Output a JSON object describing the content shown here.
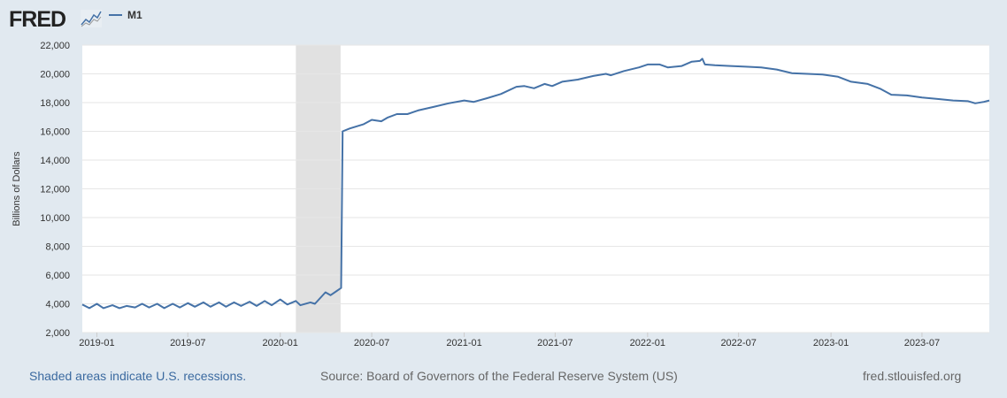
{
  "logo": {
    "text": "FRED"
  },
  "colors": {
    "line": "#4572a7",
    "recession": "#e1e1e1",
    "background": "#e1e9f0",
    "link": "#3b6aa0"
  },
  "footer": {
    "recession_note": "Shaded areas indicate U.S. recessions.",
    "source": "Source: Board of Governors of the Federal Reserve System (US)",
    "site": "fred.stlouisfed.org"
  },
  "chart_data": {
    "type": "line",
    "title": "",
    "ylabel": "Billions of Dollars",
    "xlabel": "",
    "ylim": [
      2000,
      22000
    ],
    "xlim": [
      "2018-12-03",
      "2023-11-12"
    ],
    "grid": true,
    "legend": "top-left",
    "yticks": [
      "2,000",
      "4,000",
      "6,000",
      "8,000",
      "10,000",
      "12,000",
      "14,000",
      "16,000",
      "18,000",
      "20,000",
      "22,000"
    ],
    "ytick_values": [
      2000,
      4000,
      6000,
      8000,
      10000,
      12000,
      14000,
      16000,
      18000,
      20000,
      22000
    ],
    "xticks": [
      "2019-01",
      "2019-07",
      "2020-01",
      "2020-07",
      "2021-01",
      "2021-07",
      "2022-01",
      "2022-07",
      "2023-01",
      "2023-07"
    ],
    "recessions": [
      [
        "2020-02-01",
        "2020-04-30"
      ]
    ],
    "series": [
      {
        "name": "M1",
        "points": [
          [
            "2018-12-03",
            3950
          ],
          [
            "2018-12-17",
            3700
          ],
          [
            "2019-01-01",
            4000
          ],
          [
            "2019-01-14",
            3700
          ],
          [
            "2019-02-01",
            3900
          ],
          [
            "2019-02-15",
            3700
          ],
          [
            "2019-03-01",
            3850
          ],
          [
            "2019-03-18",
            3750
          ],
          [
            "2019-04-01",
            4000
          ],
          [
            "2019-04-15",
            3750
          ],
          [
            "2019-05-01",
            4000
          ],
          [
            "2019-05-15",
            3700
          ],
          [
            "2019-06-01",
            4000
          ],
          [
            "2019-06-15",
            3750
          ],
          [
            "2019-07-01",
            4050
          ],
          [
            "2019-07-15",
            3800
          ],
          [
            "2019-08-01",
            4100
          ],
          [
            "2019-08-15",
            3800
          ],
          [
            "2019-09-01",
            4100
          ],
          [
            "2019-09-15",
            3800
          ],
          [
            "2019-10-01",
            4100
          ],
          [
            "2019-10-15",
            3850
          ],
          [
            "2019-11-01",
            4150
          ],
          [
            "2019-11-15",
            3850
          ],
          [
            "2019-12-01",
            4200
          ],
          [
            "2019-12-15",
            3900
          ],
          [
            "2020-01-01",
            4300
          ],
          [
            "2020-01-15",
            3950
          ],
          [
            "2020-02-01",
            4200
          ],
          [
            "2020-02-10",
            3900
          ],
          [
            "2020-03-01",
            4100
          ],
          [
            "2020-03-10",
            4000
          ],
          [
            "2020-03-31",
            4800
          ],
          [
            "2020-04-10",
            4600
          ],
          [
            "2020-05-01",
            5100
          ],
          [
            "2020-05-04",
            16000
          ],
          [
            "2020-05-18",
            16200
          ],
          [
            "2020-06-15",
            16500
          ],
          [
            "2020-07-01",
            16800
          ],
          [
            "2020-07-20",
            16700
          ],
          [
            "2020-08-01",
            16950
          ],
          [
            "2020-08-20",
            17200
          ],
          [
            "2020-09-10",
            17200
          ],
          [
            "2020-10-01",
            17450
          ],
          [
            "2020-11-01",
            17700
          ],
          [
            "2020-12-01",
            17950
          ],
          [
            "2021-01-01",
            18150
          ],
          [
            "2021-01-20",
            18050
          ],
          [
            "2021-02-15",
            18300
          ],
          [
            "2021-03-15",
            18600
          ],
          [
            "2021-04-15",
            19100
          ],
          [
            "2021-05-01",
            19150
          ],
          [
            "2021-05-20",
            19000
          ],
          [
            "2021-06-10",
            19300
          ],
          [
            "2021-06-25",
            19150
          ],
          [
            "2021-07-15",
            19450
          ],
          [
            "2021-08-15",
            19600
          ],
          [
            "2021-09-15",
            19850
          ],
          [
            "2021-10-10",
            20000
          ],
          [
            "2021-10-20",
            19900
          ],
          [
            "2021-11-15",
            20200
          ],
          [
            "2021-12-15",
            20450
          ],
          [
            "2022-01-01",
            20650
          ],
          [
            "2022-01-25",
            20650
          ],
          [
            "2022-02-10",
            20450
          ],
          [
            "2022-03-10",
            20550
          ],
          [
            "2022-03-30",
            20850
          ],
          [
            "2022-04-15",
            20900
          ],
          [
            "2022-04-20",
            21050
          ],
          [
            "2022-04-25",
            20650
          ],
          [
            "2022-05-15",
            20600
          ],
          [
            "2022-06-15",
            20550
          ],
          [
            "2022-07-15",
            20500
          ],
          [
            "2022-08-15",
            20450
          ],
          [
            "2022-09-15",
            20300
          ],
          [
            "2022-10-15",
            20050
          ],
          [
            "2022-11-15",
            20000
          ],
          [
            "2022-12-15",
            19950
          ],
          [
            "2023-01-15",
            19800
          ],
          [
            "2023-02-10",
            19450
          ],
          [
            "2023-03-15",
            19300
          ],
          [
            "2023-04-10",
            18950
          ],
          [
            "2023-05-01",
            18550
          ],
          [
            "2023-06-01",
            18500
          ],
          [
            "2023-07-01",
            18350
          ],
          [
            "2023-08-01",
            18250
          ],
          [
            "2023-09-01",
            18150
          ],
          [
            "2023-10-01",
            18100
          ],
          [
            "2023-10-15",
            17950
          ],
          [
            "2023-11-01",
            18050
          ],
          [
            "2023-11-12",
            18150
          ]
        ]
      }
    ]
  }
}
